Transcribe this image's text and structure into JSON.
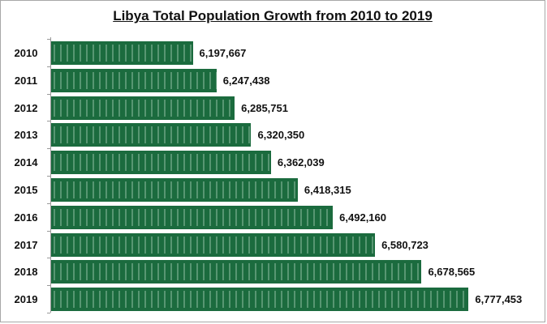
{
  "chart_data": {
    "type": "bar",
    "orientation": "horizontal",
    "title": "Libya Total Population Growth from 2010 to 2019",
    "xlabel": "",
    "ylabel": "",
    "categories": [
      "2010",
      "2011",
      "2012",
      "2013",
      "2014",
      "2015",
      "2016",
      "2017",
      "2018",
      "2019"
    ],
    "values": [
      6197667,
      6247438,
      6285751,
      6320350,
      6362039,
      6418315,
      6492160,
      6580723,
      6678565,
      6777453
    ],
    "value_labels": [
      "6,197,667",
      "6,247,438",
      "6,285,751",
      "6,320,350",
      "6,362,039",
      "6,418,315",
      "6,492,160",
      "6,580,723",
      "6,678,565",
      "6,777,453"
    ],
    "xlim": [
      5900000,
      6920000
    ],
    "grid": false,
    "legend": "none",
    "bar_color": "#1b6b3e"
  }
}
